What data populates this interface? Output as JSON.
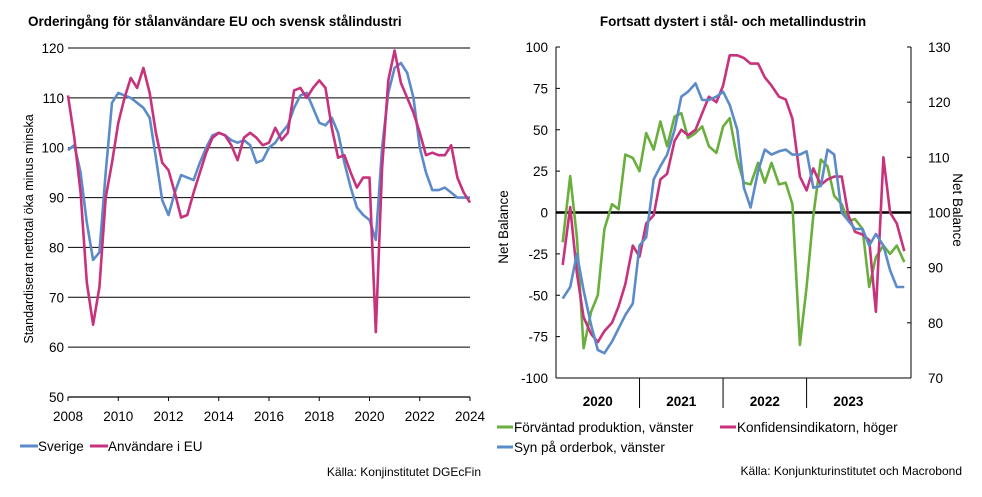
{
  "chart_data": [
    {
      "type": "line",
      "title": "Orderingång för stålanvändare EU och svensk stålindustri",
      "ylabel": "Standardiserat nettotal öka minus minska",
      "xlabel": "",
      "ylim": [
        50,
        120
      ],
      "yticks": [
        "50",
        "60",
        "70",
        "80",
        "90",
        "100",
        "110",
        "120"
      ],
      "xlim": [
        2008,
        2024
      ],
      "xticks": [
        "2008",
        "2010",
        "2012",
        "2014",
        "2016",
        "2018",
        "2020",
        "2022",
        "2024"
      ],
      "grid": true,
      "legend_position": "bottom-left",
      "source": "Källa: Konjinstitutet DGEcFin",
      "series": [
        {
          "name": "Sverige",
          "color": "#5b8bc9",
          "x": [
            2008.0,
            2008.25,
            2008.5,
            2008.75,
            2009.0,
            2009.25,
            2009.5,
            2009.75,
            2010.0,
            2010.25,
            2010.5,
            2010.75,
            2011.0,
            2011.25,
            2011.5,
            2011.75,
            2012.0,
            2012.25,
            2012.5,
            2012.75,
            2013.0,
            2013.25,
            2013.5,
            2013.75,
            2014.0,
            2014.25,
            2014.5,
            2014.75,
            2015.0,
            2015.25,
            2015.5,
            2015.75,
            2016.0,
            2016.25,
            2016.5,
            2016.75,
            2017.0,
            2017.25,
            2017.5,
            2017.75,
            2018.0,
            2018.25,
            2018.5,
            2018.75,
            2019.0,
            2019.25,
            2019.5,
            2019.75,
            2020.0,
            2020.25,
            2020.5,
            2020.75,
            2021.0,
            2021.25,
            2021.5,
            2021.75,
            2022.0,
            2022.25,
            2022.5,
            2022.75,
            2023.0,
            2023.25,
            2023.5,
            2023.75,
            2024.0
          ],
          "values": [
            99.5,
            100.5,
            95,
            85,
            77.5,
            79,
            95,
            109,
            111,
            110.5,
            110,
            109,
            108,
            106,
            98,
            89.5,
            86.5,
            91,
            94.5,
            94,
            93.5,
            97,
            100,
            102.5,
            103,
            102.5,
            101.5,
            101,
            101.5,
            100.5,
            97,
            97.5,
            100,
            101,
            103,
            104.5,
            108,
            110.5,
            111,
            108,
            105,
            104.5,
            106,
            103,
            97,
            92,
            88,
            86.5,
            85.5,
            81.5,
            100,
            111,
            116,
            117,
            115,
            110,
            100,
            95,
            91.5,
            91.5,
            92,
            91,
            90,
            90,
            90
          ]
        },
        {
          "name": "Användare i EU",
          "color": "#c8317c",
          "x": [
            2008.0,
            2008.25,
            2008.5,
            2008.75,
            2009.0,
            2009.25,
            2009.5,
            2009.75,
            2010.0,
            2010.25,
            2010.5,
            2010.75,
            2011.0,
            2011.25,
            2011.5,
            2011.75,
            2012.0,
            2012.25,
            2012.5,
            2012.75,
            2013.0,
            2013.25,
            2013.5,
            2013.75,
            2014.0,
            2014.25,
            2014.5,
            2014.75,
            2015.0,
            2015.25,
            2015.5,
            2015.75,
            2016.0,
            2016.25,
            2016.5,
            2016.75,
            2017.0,
            2017.25,
            2017.5,
            2017.75,
            2018.0,
            2018.25,
            2018.5,
            2018.75,
            2019.0,
            2019.25,
            2019.5,
            2019.75,
            2020.0,
            2020.25,
            2020.5,
            2020.75,
            2021.0,
            2021.25,
            2021.5,
            2021.75,
            2022.0,
            2022.25,
            2022.5,
            2022.75,
            2023.0,
            2023.25,
            2023.5,
            2023.75,
            2024.0
          ],
          "values": [
            110.5,
            102,
            91,
            73,
            64.5,
            72,
            90,
            97,
            105,
            110,
            114,
            112,
            116,
            111,
            103,
            97,
            95.5,
            91,
            86,
            86.5,
            91,
            95,
            99,
            102,
            103,
            102.5,
            100.5,
            97.5,
            102,
            103,
            102,
            100.5,
            101,
            104,
            101.5,
            103,
            111.5,
            112,
            110,
            112,
            113.5,
            112,
            104,
            98,
            98.5,
            95,
            92,
            94,
            94,
            63,
            96,
            113.5,
            119.5,
            113,
            110,
            107,
            103,
            98.5,
            99,
            98.5,
            98.5,
            100.5,
            94,
            91,
            89
          ]
        }
      ]
    },
    {
      "type": "line",
      "title": "Fortsatt dystert i stål- och metallindustrin",
      "ylabel_left": "Net Balance",
      "ylabel_right": "Net Balance",
      "ylim": [
        -100,
        100
      ],
      "ylim_right": [
        70,
        130
      ],
      "yticks": [
        "-100",
        "-75",
        "-50",
        "-25",
        "0",
        "25",
        "50",
        "75",
        "100"
      ],
      "yticks_right": [
        "70",
        "80",
        "90",
        "100",
        "110",
        "120",
        "130"
      ],
      "xlim": [
        2019.5,
        2023.75
      ],
      "xticks": [
        "2020",
        "2021",
        "2022",
        "2023"
      ],
      "grid": false,
      "legend_position": "bottom",
      "source": "Källa: Konjunkturinstitutet och Macrobond",
      "series": [
        {
          "name": "Förväntad produktion, vänster",
          "axis": "left",
          "color": "#6aaf3d",
          "x": [
            2019.58,
            2019.67,
            2019.75,
            2019.83,
            2019.92,
            2020.0,
            2020.08,
            2020.17,
            2020.25,
            2020.33,
            2020.42,
            2020.5,
            2020.58,
            2020.67,
            2020.75,
            2020.83,
            2020.92,
            2021.0,
            2021.08,
            2021.17,
            2021.25,
            2021.33,
            2021.42,
            2021.5,
            2021.58,
            2021.67,
            2021.75,
            2021.83,
            2021.92,
            2022.0,
            2022.08,
            2022.17,
            2022.25,
            2022.33,
            2022.42,
            2022.5,
            2022.58,
            2022.67,
            2022.75,
            2022.83,
            2022.92,
            2023.0,
            2023.08,
            2023.17,
            2023.25,
            2023.33,
            2023.42,
            2023.5,
            2023.58,
            2023.67
          ],
          "values": [
            -18,
            22,
            -15,
            -82,
            -60,
            -50,
            -10,
            5,
            2,
            35,
            33,
            25,
            48,
            38,
            55,
            40,
            58,
            60,
            45,
            48,
            52,
            40,
            36,
            52,
            57,
            32,
            18,
            17,
            30,
            18,
            30,
            17,
            18,
            5,
            -80,
            -45,
            -2,
            32,
            28,
            10,
            5,
            -5,
            -4,
            -10,
            -45,
            -27,
            -20,
            -25,
            -20,
            -30
          ]
        },
        {
          "name": "Konfidensindikatorn, höger",
          "axis": "right",
          "color": "#c8317c",
          "x": [
            2019.58,
            2019.67,
            2019.75,
            2019.83,
            2019.92,
            2020.0,
            2020.08,
            2020.17,
            2020.25,
            2020.33,
            2020.42,
            2020.5,
            2020.58,
            2020.67,
            2020.75,
            2020.83,
            2020.92,
            2021.0,
            2021.08,
            2021.17,
            2021.25,
            2021.33,
            2021.42,
            2021.5,
            2021.58,
            2021.67,
            2021.75,
            2021.83,
            2021.92,
            2022.0,
            2022.08,
            2022.17,
            2022.25,
            2022.33,
            2022.42,
            2022.5,
            2022.58,
            2022.67,
            2022.75,
            2022.83,
            2022.92,
            2023.0,
            2023.08,
            2023.17,
            2023.25,
            2023.33,
            2023.42,
            2023.5,
            2023.58,
            2023.67
          ],
          "values": [
            90.5,
            101,
            89,
            81,
            78,
            76.5,
            78.5,
            80,
            83,
            87,
            94,
            92,
            98,
            99.5,
            106,
            107,
            113,
            115,
            114,
            115,
            118,
            121,
            120,
            123,
            128.5,
            128.5,
            128,
            127,
            127,
            124.5,
            123,
            121,
            120.5,
            117,
            106.5,
            104,
            108,
            105,
            106,
            106.5,
            106.5,
            99.5,
            96.5,
            96,
            95,
            82,
            110,
            100,
            98,
            93
          ]
        },
        {
          "name": "Syn på orderbok, vänster",
          "axis": "left",
          "color": "#5b8bc9",
          "x": [
            2019.58,
            2019.67,
            2019.75,
            2019.83,
            2019.92,
            2020.0,
            2020.08,
            2020.17,
            2020.25,
            2020.33,
            2020.42,
            2020.5,
            2020.58,
            2020.67,
            2020.75,
            2020.83,
            2020.92,
            2021.0,
            2021.08,
            2021.17,
            2021.25,
            2021.33,
            2021.42,
            2021.5,
            2021.58,
            2021.67,
            2021.75,
            2021.83,
            2021.92,
            2022.0,
            2022.08,
            2022.17,
            2022.25,
            2022.33,
            2022.42,
            2022.5,
            2022.58,
            2022.67,
            2022.75,
            2022.83,
            2022.92,
            2023.0,
            2023.08,
            2023.17,
            2023.25,
            2023.33,
            2023.42,
            2023.5,
            2023.58,
            2023.67
          ],
          "values": [
            -52,
            -45,
            -25,
            -47,
            -68,
            -83,
            -85,
            -78,
            -70,
            -62,
            -55,
            -20,
            -15,
            20,
            28,
            35,
            50,
            70,
            73,
            78,
            68,
            68,
            70,
            73,
            65,
            50,
            15,
            3,
            25,
            38,
            35,
            37,
            38,
            35,
            35,
            37,
            15,
            16,
            38,
            35,
            0,
            -5,
            -10,
            -10,
            -20,
            -13,
            -20,
            -35,
            -45,
            -45
          ]
        }
      ]
    }
  ]
}
